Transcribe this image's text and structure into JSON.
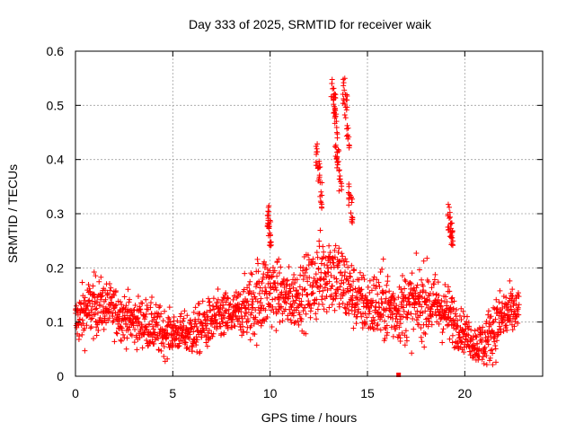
{
  "chart_data": {
    "type": "scatter",
    "title": "Day 333 of 2025, SRMTID for receiver waik",
    "xlabel": "GPS time / hours",
    "ylabel": "SRMTID / TECUs",
    "xlim": [
      0,
      24
    ],
    "ylim": [
      0,
      0.6
    ],
    "x_ticks": [
      0,
      5,
      10,
      15,
      20
    ],
    "x_tick_labels": [
      "0",
      "5",
      "10",
      "15",
      "20"
    ],
    "y_ticks": [
      0,
      0.1,
      0.2,
      0.3,
      0.4,
      0.5,
      0.6
    ],
    "y_tick_labels": [
      "0",
      "0.1",
      "0.2",
      "0.3",
      "0.4",
      "0.5",
      "0.6"
    ],
    "grid": true,
    "marker": "plus",
    "color": "#ff0000",
    "profile": {
      "hours": [
        0,
        0.5,
        1,
        1.5,
        2,
        2.5,
        3,
        3.5,
        4,
        4.5,
        5,
        5.5,
        6,
        6.5,
        7,
        7.5,
        8,
        8.5,
        9,
        9.5,
        10,
        10.5,
        11,
        11.5,
        12,
        12.5,
        13,
        13.5,
        14,
        14.5,
        15,
        15.5,
        16,
        16.5,
        17,
        17.5,
        18,
        18.5,
        19,
        19.5,
        20,
        20.5,
        21,
        21.5,
        22,
        22.5,
        22.8
      ],
      "median": [
        0.1,
        0.12,
        0.13,
        0.13,
        0.12,
        0.11,
        0.1,
        0.1,
        0.09,
        0.08,
        0.08,
        0.08,
        0.08,
        0.09,
        0.1,
        0.11,
        0.11,
        0.12,
        0.13,
        0.15,
        0.16,
        0.15,
        0.14,
        0.15,
        0.16,
        0.18,
        0.2,
        0.18,
        0.16,
        0.14,
        0.13,
        0.13,
        0.13,
        0.12,
        0.13,
        0.13,
        0.14,
        0.13,
        0.12,
        0.1,
        0.08,
        0.06,
        0.06,
        0.09,
        0.11,
        0.12,
        0.12
      ],
      "spread": [
        0.04,
        0.05,
        0.05,
        0.04,
        0.04,
        0.04,
        0.04,
        0.04,
        0.04,
        0.04,
        0.03,
        0.03,
        0.04,
        0.04,
        0.04,
        0.04,
        0.04,
        0.04,
        0.06,
        0.07,
        0.06,
        0.05,
        0.05,
        0.05,
        0.06,
        0.07,
        0.07,
        0.07,
        0.06,
        0.05,
        0.05,
        0.06,
        0.06,
        0.05,
        0.06,
        0.06,
        0.06,
        0.05,
        0.05,
        0.04,
        0.03,
        0.03,
        0.04,
        0.05,
        0.05,
        0.04,
        0.03
      ]
    },
    "spikes": [
      {
        "x": 9.9,
        "y": 0.32
      },
      {
        "x": 9.95,
        "y": 0.3
      },
      {
        "x": 10.0,
        "y": 0.29
      },
      {
        "x": 12.4,
        "y": 0.43
      },
      {
        "x": 12.5,
        "y": 0.4
      },
      {
        "x": 12.6,
        "y": 0.36
      },
      {
        "x": 13.2,
        "y": 0.55
      },
      {
        "x": 13.3,
        "y": 0.53
      },
      {
        "x": 13.35,
        "y": 0.5
      },
      {
        "x": 13.4,
        "y": 0.45
      },
      {
        "x": 13.5,
        "y": 0.42
      },
      {
        "x": 13.6,
        "y": 0.38
      },
      {
        "x": 13.8,
        "y": 0.55
      },
      {
        "x": 13.9,
        "y": 0.52
      },
      {
        "x": 14.0,
        "y": 0.47
      },
      {
        "x": 14.1,
        "y": 0.36
      },
      {
        "x": 14.2,
        "y": 0.33
      },
      {
        "x": 19.2,
        "y": 0.32
      },
      {
        "x": 19.3,
        "y": 0.3
      },
      {
        "x": 19.35,
        "y": 0.29
      },
      {
        "x": 16.6,
        "y": 0.0
      }
    ]
  }
}
